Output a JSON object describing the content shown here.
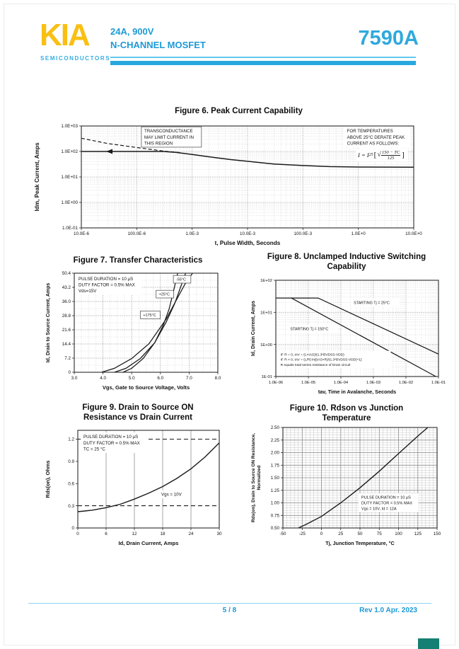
{
  "header": {
    "logo_text": "KIA",
    "logo_subtext": "SEMICONDUCTORS",
    "rating": "24A, 900V",
    "device_type": "N-CHANNEL MOSFET",
    "part_number": "7590A"
  },
  "footer": {
    "page_number": "5 / 8",
    "revision": "Rev 1.0 Apr. 2023"
  },
  "colors": {
    "accent_cyan": "#29A8DF",
    "accent_blue_text": "#1D9AD6",
    "logo_yellow": "#F9C013",
    "curve_black": "#1a1a1a",
    "corner_teal": "#157F73"
  },
  "fig6_extra": {
    "formula": {
      "prefix": "I = I",
      "sub": "25",
      "open": "[",
      "radical": "√",
      "num": "150 − TC",
      "den": "125",
      "close": "]"
    }
  },
  "chart_data": [
    {
      "id": "fig6",
      "type": "line",
      "title": "Figure 6. Peak Current Capability",
      "xlabel": "t, Pulse Width, Seconds",
      "ylabel": "Idm, Peak Current, Amps",
      "xscale": "log",
      "yscale": "log",
      "xlim": [
        1e-05,
        10
      ],
      "ylim": [
        0.1,
        1000
      ],
      "grid_dash": "1 1.6",
      "xticks": [
        {
          "v": 1e-05,
          "l": "10.0E-6"
        },
        {
          "v": 0.0001,
          "l": "100.0E-6"
        },
        {
          "v": 0.001,
          "l": "1.0E-3"
        },
        {
          "v": 0.01,
          "l": "10.0E-3"
        },
        {
          "v": 0.1,
          "l": "100.0E-3"
        },
        {
          "v": 1,
          "l": "1.0E+0"
        },
        {
          "v": 10,
          "l": "10.0E+0"
        }
      ],
      "yticks": [
        {
          "v": 1000,
          "l": "1.0E+03"
        },
        {
          "v": 100,
          "l": "1.0E+02"
        },
        {
          "v": 10,
          "l": "1.0E+01"
        },
        {
          "v": 1,
          "l": "1.0E+00"
        },
        {
          "v": 0.1,
          "l": "1.0E-01"
        }
      ],
      "series": [
        {
          "name": "peak-current-limit",
          "width": 1.5,
          "points": [
            [
              1e-05,
              100
            ],
            [
              0.0003,
              100
            ],
            [
              0.0005,
              92
            ],
            [
              0.001,
              76
            ],
            [
              0.002,
              62
            ],
            [
              0.005,
              48
            ],
            [
              0.01,
              41
            ],
            [
              0.03,
              32
            ],
            [
              0.1,
              28
            ],
            [
              0.3,
              25.5
            ],
            [
              1,
              24.5
            ],
            [
              10,
              24
            ]
          ]
        },
        {
          "name": "transconductance-limit",
          "dash": "5 3",
          "width": 1.2,
          "points": [
            [
              1e-05,
              330
            ],
            [
              3e-05,
              205
            ],
            [
              0.0001,
              143
            ],
            [
              0.0003,
              104
            ],
            [
              0.0006,
              90
            ]
          ]
        }
      ],
      "markers": [
        {
          "x": 3.2e-05,
          "y": 100
        }
      ],
      "annotations": [
        {
          "lines": [
            "TRANSCONDUCTANCE",
            "MAY LIMIT CURRENT IN",
            "THIS REGION"
          ],
          "fx": 0.185,
          "fy": 0.015,
          "fs": 6.2,
          "box": true
        },
        {
          "lines": [
            "FOR TEMPERATURES",
            "ABOVE 25°C DERATE PEAK",
            "CURRENT AS FOLLOWS:"
          ],
          "fx": 0.795,
          "fy": 0.015,
          "fs": 6.2,
          "bg": true
        }
      ]
    },
    {
      "id": "fig7",
      "type": "line",
      "title": "Figure 7. Transfer Characteristics",
      "xlabel": "Vgs, Gate to Source Voltage, Volts",
      "ylabel": "Id, Drain to Source Current, Amps",
      "xscale": "linear",
      "yscale": "linear",
      "xlim": [
        3,
        8
      ],
      "ylim": [
        0,
        50.4
      ],
      "xminor": 0.25,
      "yminor": 3.6,
      "grid_dash": "1 1.6",
      "xticks": [
        {
          "v": 3,
          "l": "3.0"
        },
        {
          "v": 4,
          "l": "4.0"
        },
        {
          "v": 5,
          "l": "5.0"
        },
        {
          "v": 6,
          "l": "6.0"
        },
        {
          "v": 7,
          "l": "7.0"
        },
        {
          "v": 8,
          "l": "8.0"
        }
      ],
      "yticks": [
        {
          "v": 0,
          "l": "0"
        },
        {
          "v": 7.2,
          "l": "7.2"
        },
        {
          "v": 14.4,
          "l": "14.4"
        },
        {
          "v": 21.6,
          "l": "21.6"
        },
        {
          "v": 28.8,
          "l": "28.8"
        },
        {
          "v": 36,
          "l": "36.0"
        },
        {
          "v": 43.2,
          "l": "43.2"
        },
        {
          "v": 50.4,
          "l": "50.4"
        }
      ],
      "series": [
        {
          "name": "-55°C",
          "points": [
            [
              4.7,
              0
            ],
            [
              5.0,
              2
            ],
            [
              5.4,
              7
            ],
            [
              5.8,
              15
            ],
            [
              6.1,
              24
            ],
            [
              6.3,
              32
            ],
            [
              6.45,
              41
            ],
            [
              6.6,
              50.4
            ]
          ]
        },
        {
          "name": "+25°C",
          "points": [
            [
              4.4,
              0
            ],
            [
              4.8,
              2
            ],
            [
              5.3,
              7
            ],
            [
              5.8,
              15
            ],
            [
              6.2,
              25.5
            ],
            [
              6.5,
              35
            ],
            [
              6.72,
              44
            ],
            [
              6.88,
              50.4
            ]
          ]
        },
        {
          "name": "+175°C",
          "points": [
            [
              3.95,
              0
            ],
            [
              4.4,
              2
            ],
            [
              5.0,
              7
            ],
            [
              5.6,
              14.5
            ],
            [
              6.2,
              27
            ],
            [
              6.6,
              38
            ],
            [
              6.9,
              46
            ],
            [
              7.12,
              50.4
            ]
          ]
        }
      ],
      "annotations": [
        {
          "lines": [
            "PULSE DURATION = 10 µS",
            "DUTY FACTOR = 0.5% MAX",
            "Vds=15V"
          ],
          "fx": 0.02,
          "fy": 0.02,
          "fs": 6.2,
          "bg": true
        },
        {
          "lines": [
            "-55°C"
          ],
          "fx": 0.7,
          "fy": 0.03,
          "fs": 5.4,
          "box": true
        },
        {
          "lines": [
            "+25°C"
          ],
          "fx": 0.58,
          "fy": 0.18,
          "fs": 5.4,
          "box": true
        },
        {
          "lines": [
            "+175°C"
          ],
          "fx": 0.47,
          "fy": 0.39,
          "fs": 5.4,
          "box": true
        }
      ]
    },
    {
      "id": "fig8",
      "type": "line",
      "title": "Figure 8. Unclamped Inductive Switching\nCapability",
      "xlabel": "tav, Time in Avalanche, Seconds",
      "ylabel": "Id, Drain Current, Amps",
      "xscale": "log",
      "yscale": "log",
      "xlim": [
        1e-06,
        0.1
      ],
      "ylim": [
        0.1,
        100
      ],
      "grid_dash": "1 1.6",
      "xticks": [
        {
          "v": 1e-06,
          "l": "1.0E-06"
        },
        {
          "v": 1e-05,
          "l": "1.0E-05"
        },
        {
          "v": 0.0001,
          "l": "1.0E-04"
        },
        {
          "v": 0.001,
          "l": "1.0E-03"
        },
        {
          "v": 0.01,
          "l": "1.0E-02"
        },
        {
          "v": 0.1,
          "l": "1.0E-01"
        }
      ],
      "yticks": [
        {
          "v": 100,
          "l": "1E+02"
        },
        {
          "v": 10,
          "l": "1E+01"
        },
        {
          "v": 1,
          "l": "1E+00"
        },
        {
          "v": 0.1,
          "l": "1E-01"
        }
      ],
      "series": [
        {
          "name": "starting-tj-25C",
          "points": [
            [
              1e-06,
              28
            ],
            [
              2e-05,
              28
            ],
            [
              0.1,
              0.5
            ]
          ]
        },
        {
          "name": "starting-tj-150C",
          "points": [
            [
              3e-06,
              28
            ],
            [
              0.083,
              0.1
            ]
          ]
        }
      ],
      "annotations": [
        {
          "lines": [
            "STARTING Tj = 25°C"
          ],
          "fx": 0.47,
          "fy": 0.2,
          "fs": 5.4,
          "bg": true
        },
        {
          "lines": [
            "STARTING Tj = 150°C"
          ],
          "fx": 0.08,
          "fy": 0.47,
          "fs": 5.4,
          "bg": true
        },
        {
          "lines": [
            "IF R = 0, tAV = (L×IAS)/(1.3*BVDSS-VDD)",
            "IF R > 0, tAV = (L/R) ln[(IAS×R)/(1.3*BVDSS-VDD)+1]",
            "R equals total series resistance of Drain circuit"
          ],
          "fx": 0.02,
          "fy": 0.74,
          "fs": 4.8,
          "bg": true
        }
      ]
    },
    {
      "id": "fig9",
      "type": "line",
      "title": "Figure 9. Drain to Source ON\nResistance vs Drain Current",
      "xlabel": "Id, Drain Current, Amps",
      "ylabel": "Rds(on),  Ohms",
      "xscale": "linear",
      "yscale": "linear",
      "xlim": [
        0,
        30
      ],
      "ylim": [
        0,
        1.32
      ],
      "grid_x": true,
      "grid_y": false,
      "xticks": [
        {
          "v": 0,
          "l": "0"
        },
        {
          "v": 6,
          "l": "6"
        },
        {
          "v": 12,
          "l": "12"
        },
        {
          "v": 18,
          "l": "18"
        },
        {
          "v": 24,
          "l": "24"
        },
        {
          "v": 30,
          "l": "30"
        }
      ],
      "yticks": [
        {
          "v": 0,
          "l": "0"
        },
        {
          "v": 0.3,
          "l": "0.3"
        },
        {
          "v": 0.6,
          "l": "0.6"
        },
        {
          "v": 0.9,
          "l": "0.9"
        },
        {
          "v": 1.2,
          "l": "1.2"
        }
      ],
      "series": [
        {
          "name": "rdson-vs-id",
          "width": 1.4,
          "points": [
            [
              0,
              0.22
            ],
            [
              3,
              0.24
            ],
            [
              6,
              0.275
            ],
            [
              9,
              0.32
            ],
            [
              12,
              0.39
            ],
            [
              15,
              0.47
            ],
            [
              18,
              0.56
            ],
            [
              21,
              0.67
            ],
            [
              24,
              0.8
            ],
            [
              27,
              0.96
            ],
            [
              30,
              1.15
            ]
          ]
        },
        {
          "name": "dashed-limit-1.2",
          "dash": "6 4",
          "width": 1.1,
          "points": [
            [
              0,
              1.2
            ],
            [
              30,
              1.2
            ]
          ]
        },
        {
          "name": "dashed-limit-0.3",
          "dash": "6 4",
          "width": 1.1,
          "points": [
            [
              0,
              0.3
            ],
            [
              30,
              0.3
            ]
          ]
        }
      ],
      "annotations": [
        {
          "lines": [
            "PULSE DURATION = 10 µS",
            "DUTY FACTOR = 0.5% MAX",
            "TC = 25 °C"
          ],
          "fx": 0.03,
          "fy": 0.03,
          "fs": 6.2,
          "bg": true
        },
        {
          "lines": [
            "Vgs = 10V"
          ],
          "fx": 0.58,
          "fy": 0.62,
          "fs": 6.2,
          "bg": true
        }
      ]
    },
    {
      "id": "fig10",
      "type": "line",
      "title": "Figure 10. Rdson vs Junction\nTemperature",
      "xlabel": "Tj, Junction Temperature, °C",
      "ylabel": "Rds(on), Drain to Source ON Resistance,\nNormalized",
      "xscale": "linear",
      "yscale": "linear",
      "xlim": [
        -50,
        150
      ],
      "ylim": [
        0.5,
        2.5
      ],
      "xminor": 5,
      "yminor": 0.05,
      "xticks": [
        {
          "v": -50,
          "l": "-50"
        },
        {
          "v": -25,
          "l": "-25"
        },
        {
          "v": 0,
          "l": "0"
        },
        {
          "v": 25,
          "l": "25"
        },
        {
          "v": 50,
          "l": "50"
        },
        {
          "v": 75,
          "l": "75"
        },
        {
          "v": 100,
          "l": "100"
        },
        {
          "v": 125,
          "l": "125"
        },
        {
          "v": 150,
          "l": "150"
        }
      ],
      "yticks": [
        {
          "v": 0.5,
          "l": "0.50"
        },
        {
          "v": 0.75,
          "l": "0.75"
        },
        {
          "v": 1,
          "l": "1.00"
        },
        {
          "v": 1.25,
          "l": "1.25"
        },
        {
          "v": 1.5,
          "l": "1.50"
        },
        {
          "v": 1.75,
          "l": "1.75"
        },
        {
          "v": 2,
          "l": "2.00"
        },
        {
          "v": 2.25,
          "l": "2.25"
        },
        {
          "v": 2.5,
          "l": "2.50"
        }
      ],
      "series": [
        {
          "name": "rdson-normalized",
          "width": 1.4,
          "points": [
            [
              -30,
              0.5
            ],
            [
              -20,
              0.57
            ],
            [
              0,
              0.73
            ],
            [
              25,
              1.0
            ],
            [
              50,
              1.3
            ],
            [
              75,
              1.63
            ],
            [
              100,
              1.98
            ],
            [
              125,
              2.33
            ],
            [
              138,
              2.5
            ]
          ]
        }
      ],
      "annotations": [
        {
          "lines": [
            "PULSE DURATION = 10 µS",
            "DUTY FACTOR = 0.5% MAX",
            "Vgs = 10V, Id = 12A"
          ],
          "fx": 0.5,
          "fy": 0.66,
          "fs": 5.6,
          "bg": true
        }
      ]
    }
  ]
}
